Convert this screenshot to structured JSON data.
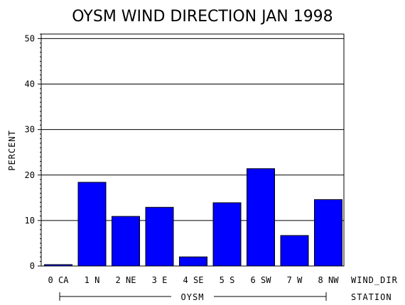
{
  "chart_data": {
    "type": "bar",
    "title": "OYSM WIND DIRECTION JAN 1998",
    "ylabel": "PERCENT",
    "ylim": [
      0,
      51
    ],
    "yticks": [
      "0",
      "10",
      "20",
      "30",
      "40",
      "50"
    ],
    "categories": [
      "0 CA",
      "1 N",
      "2 NE",
      "3 E",
      "4 SE",
      "5 S",
      "6 SW",
      "7 W",
      "8 NW"
    ],
    "values": [
      0.3,
      18.4,
      10.9,
      12.9,
      2.0,
      13.9,
      21.4,
      6.7,
      14.6
    ],
    "xlabel": "WIND_DIR",
    "group_label": "OYSM",
    "group_axis_label": "STATION",
    "bar_color": "#0000ff",
    "grid": true
  }
}
